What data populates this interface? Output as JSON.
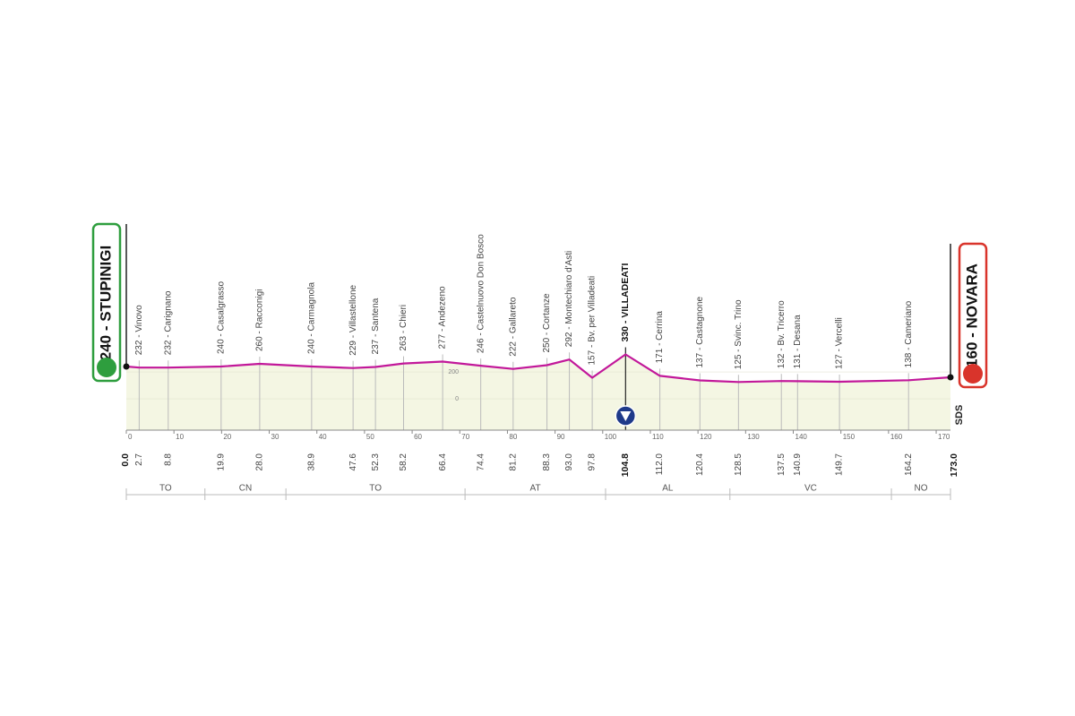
{
  "chart_data": {
    "type": "profile",
    "waypoints": [
      {
        "km": {
          "value": 0,
          "label": "0.0"
        },
        "alt": 240,
        "label": "240 - STUPINIGI",
        "role": "start"
      },
      {
        "km": 2.7,
        "alt": 232,
        "label": "232 - Vinovo"
      },
      {
        "km": 8.8,
        "alt": 232,
        "label": "232 - Carignano"
      },
      {
        "km": 19.9,
        "alt": 240,
        "label": "240 - Casalgrasso"
      },
      {
        "km": {
          "value": 28,
          "label": "28.0"
        },
        "alt": 260,
        "label": "260 - Racconigi"
      },
      {
        "km": 38.9,
        "alt": 240,
        "label": "240 - Carmagnola"
      },
      {
        "km": 47.6,
        "alt": 229,
        "label": "229 - Villastellone"
      },
      {
        "km": 52.3,
        "alt": 237,
        "label": "237 - Santena"
      },
      {
        "km": 58.2,
        "alt": 263,
        "label": "263 - Chieri"
      },
      {
        "km": 66.4,
        "alt": 277,
        "label": "277 - Andezeno"
      },
      {
        "km": 74.4,
        "alt": 246,
        "label": "246 - Castelnuovo Don Bosco"
      },
      {
        "km": 81.2,
        "alt": 222,
        "label": "222 - Gallareto"
      },
      {
        "km": 88.3,
        "alt": 250,
        "label": "250 - Cortanze"
      },
      {
        "km": {
          "value": 93,
          "label": "93.0"
        },
        "alt": 292,
        "label": "292 - Montechiaro d'Asti"
      },
      {
        "km": 97.8,
        "alt": 157,
        "label": "157 - Bv. per Villadeati"
      },
      {
        "km": 104.8,
        "alt": 330,
        "label": "330 - VILLADEATI",
        "role": "sprint"
      },
      {
        "km": {
          "value": 112,
          "label": "112.0"
        },
        "alt": 171,
        "label": "171 - Cerrina"
      },
      {
        "km": 120.4,
        "alt": 137,
        "label": "137 - Castagnone"
      },
      {
        "km": 128.5,
        "alt": 125,
        "label": "125 - Svinc. Trino"
      },
      {
        "km": 137.5,
        "alt": 132,
        "label": "132 - Bv. Tricerro"
      },
      {
        "km": 140.9,
        "alt": 131,
        "label": "131 - Desana"
      },
      {
        "km": 149.7,
        "alt": 127,
        "label": "127 - Vercelli"
      },
      {
        "km": 164.2,
        "alt": 138,
        "label": "138 - Cameriano"
      },
      {
        "km": {
          "value": 173,
          "label": "173.0"
        },
        "alt": 160,
        "label": "160 - NOVARA",
        "role": "finish"
      }
    ],
    "xlim": [
      0,
      173
    ],
    "xticks": [
      0,
      10,
      20,
      30,
      40,
      50,
      60,
      70,
      80,
      90,
      100,
      110,
      120,
      130,
      140,
      150,
      160,
      170
    ],
    "ylim": [
      -233,
      1300
    ],
    "yticks": [
      0,
      200
    ],
    "regions": [
      {
        "name": "TO",
        "from": 0,
        "to": 16.5
      },
      {
        "name": "CN",
        "from": 16.5,
        "to": 33.5
      },
      {
        "name": "TO",
        "from": 33.5,
        "to": 71.1
      },
      {
        "name": "AT",
        "from": 71.1,
        "to": 100.6
      },
      {
        "name": "AL",
        "from": 100.6,
        "to": 126.7
      },
      {
        "name": "VC",
        "from": 126.7,
        "to": 160.6
      },
      {
        "name": "NO",
        "from": 160.6,
        "to": 173
      }
    ],
    "line_color": "#c2189a",
    "fill_color": "#f4f6e3",
    "start_color": "#2e9e3e",
    "finish_color": "#d9342b",
    "logo": "SDS"
  }
}
